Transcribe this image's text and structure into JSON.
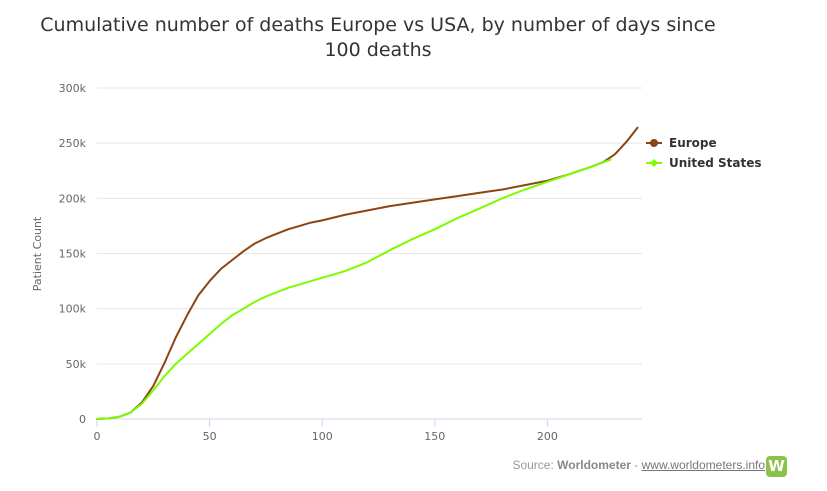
{
  "chart_data": {
    "type": "line",
    "title_line1": "Cumulative number of deaths Europe vs USA, by number of days since",
    "title_line2": "100 deaths",
    "ylabel": "Patient Count",
    "xlabel": "",
    "xlim": [
      0,
      242
    ],
    "ylim": [
      0,
      300000
    ],
    "x_ticks": [
      "0",
      "50",
      "100",
      "150",
      "200"
    ],
    "y_ticks": [
      "0",
      "50k",
      "100k",
      "150k",
      "200k",
      "250k",
      "300k"
    ],
    "grid": true,
    "legend_position": "right",
    "series": [
      {
        "name": "Europe",
        "color": "#8b4513",
        "x": [
          0,
          5,
          10,
          15,
          20,
          25,
          30,
          35,
          40,
          45,
          50,
          55,
          60,
          65,
          70,
          75,
          80,
          85,
          90,
          95,
          100,
          110,
          120,
          130,
          140,
          150,
          160,
          170,
          180,
          190,
          200,
          210,
          220,
          225,
          230,
          235,
          240
        ],
        "y": [
          0,
          500,
          2000,
          6000,
          15000,
          30000,
          51000,
          74000,
          94000,
          112000,
          125000,
          136000,
          144000,
          152000,
          159000,
          164000,
          168000,
          172000,
          175000,
          178000,
          180000,
          185000,
          189000,
          193000,
          196000,
          199000,
          202000,
          205000,
          208000,
          212000,
          216000,
          222000,
          229000,
          233000,
          240000,
          251000,
          264000
        ]
      },
      {
        "name": "United States",
        "color": "#7cfc00",
        "x": [
          0,
          5,
          10,
          15,
          20,
          25,
          30,
          35,
          40,
          45,
          50,
          55,
          60,
          65,
          70,
          75,
          80,
          85,
          90,
          95,
          100,
          110,
          120,
          130,
          140,
          150,
          160,
          170,
          180,
          190,
          200,
          210,
          220,
          228
        ],
        "y": [
          0,
          500,
          2000,
          6000,
          14000,
          26000,
          39000,
          50000,
          59000,
          68000,
          77000,
          86000,
          94000,
          100000,
          106000,
          111000,
          115000,
          119000,
          122000,
          125000,
          128000,
          134000,
          142000,
          153000,
          163000,
          172000,
          182000,
          191000,
          200000,
          208000,
          215000,
          222000,
          229000,
          235000
        ]
      }
    ]
  },
  "source": {
    "prefix": "Source: ",
    "name": "Worldometer",
    "separator": " - ",
    "link": "www.worldometers.info",
    "logo_letter": "W"
  }
}
